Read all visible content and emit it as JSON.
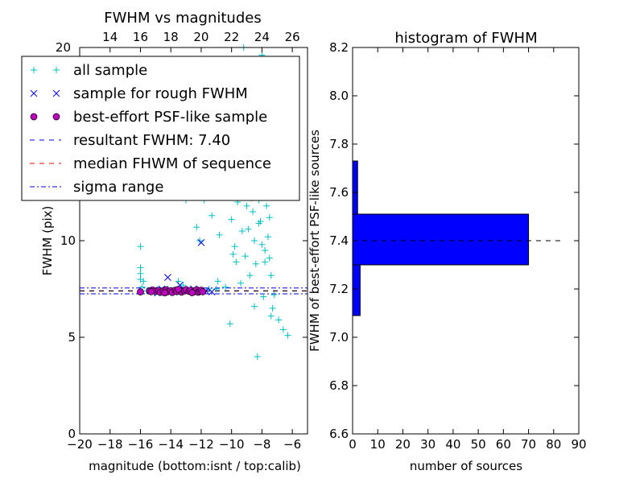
{
  "chart_data": [
    {
      "type": "scatter",
      "title": "FWHM vs magnitudes",
      "xlabel": "magnitude (bottom:isnt / top:calib)",
      "ylabel": "FWHM (pix)",
      "xlim": [
        -20,
        -5
      ],
      "ylim": [
        0,
        20
      ],
      "xticks": [
        "−20",
        "−18",
        "−16",
        "−14",
        "−12",
        "−10",
        "−8",
        "−6"
      ],
      "xtick_values": [
        -20,
        -18,
        -16,
        -14,
        -12,
        -10,
        -8,
        -6
      ],
      "yticks": [
        "0",
        "5",
        "10"
      ],
      "ytick_values": [
        0,
        5,
        10
      ],
      "top_axis_ticks": [
        "14",
        "16",
        "18",
        "20",
        "22",
        "24",
        "26"
      ],
      "top_axis_values": [
        -18,
        -16,
        -14,
        -12,
        -10,
        -8,
        -6
      ],
      "top_axis_corner_label": "20",
      "grid": false,
      "legend_position": "top-left (overlapping into right margin)",
      "legend": [
        {
          "label": "all sample",
          "marker": "+",
          "color": "#00bfbf"
        },
        {
          "label": "sample for rough FWHM",
          "marker": "x",
          "color": "#0000ff"
        },
        {
          "label": "best-effort PSF-like sample",
          "marker": "o",
          "color": "#bf00bf"
        },
        {
          "label": "resultant FWHM: 7.40",
          "linestyle": "dashed",
          "color": "#0000ff"
        },
        {
          "label": "median FHWM of sequence",
          "linestyle": "dashed",
          "color": "#ff0000"
        },
        {
          "label": "sigma range",
          "linestyle": "dashdot",
          "color": "#0000ff"
        }
      ],
      "hlines": [
        {
          "y": 7.4,
          "color": "#0000ff",
          "style": "dashed"
        },
        {
          "y": 7.4,
          "color": "#ff0000",
          "style": "dashed"
        },
        {
          "y": 7.55,
          "color": "#0000ff",
          "style": "dashdot"
        },
        {
          "y": 7.25,
          "color": "#0000ff",
          "style": "dashdot"
        },
        {
          "y": 7.4,
          "color": "#000000",
          "style": "dashed"
        }
      ],
      "series": [
        {
          "name": "all sample",
          "marker": "+",
          "color": "#00bfbf",
          "points": [
            [
              -16.0,
              9.7
            ],
            [
              -16.0,
              8.6
            ],
            [
              -16.0,
              8.3
            ],
            [
              -16.0,
              8.0
            ],
            [
              -15.8,
              7.9
            ],
            [
              -15.9,
              7.6
            ],
            [
              -15.1,
              13.8
            ],
            [
              -14.6,
              16.2
            ],
            [
              -14.3,
              12.6
            ],
            [
              -13.5,
              7.9
            ],
            [
              -13.2,
              7.7
            ],
            [
              -13.0,
              12.1
            ],
            [
              -12.3,
              10.7
            ],
            [
              -12.1,
              10.0
            ],
            [
              -11.8,
              12.1
            ],
            [
              -11.3,
              11.3
            ],
            [
              -10.8,
              10.3
            ],
            [
              -10.6,
              13.2
            ],
            [
              -10.2,
              12.7
            ],
            [
              -10.0,
              11.1
            ],
            [
              -10.1,
              5.7
            ],
            [
              -9.8,
              9.7
            ],
            [
              -9.6,
              12.0
            ],
            [
              -9.5,
              14.0
            ],
            [
              -9.3,
              10.5
            ],
            [
              -9.1,
              9.2
            ],
            [
              -8.9,
              13.0
            ],
            [
              -8.8,
              15.5
            ],
            [
              -8.6,
              11.5
            ],
            [
              -8.5,
              10.0
            ],
            [
              -8.4,
              14.3
            ],
            [
              -8.3,
              13.0
            ],
            [
              -8.2,
              12.1
            ],
            [
              -8.1,
              11.0
            ],
            [
              -8.0,
              9.8
            ],
            [
              -7.9,
              12.5
            ],
            [
              -7.8,
              8.9
            ],
            [
              -7.7,
              11.8
            ],
            [
              -7.6,
              10.2
            ],
            [
              -7.5,
              9.1
            ],
            [
              -7.4,
              8.2
            ],
            [
              -7.3,
              6.5
            ],
            [
              -7.2,
              7.2
            ],
            [
              -6.9,
              5.9
            ],
            [
              -6.6,
              5.4
            ],
            [
              -6.3,
              5.1
            ],
            [
              -8.3,
              4.0
            ],
            [
              -9.2,
              20.0
            ],
            [
              -8.0,
              19.6
            ],
            [
              -7.2,
              18.6
            ],
            [
              -8.6,
              17.5
            ],
            [
              -9.6,
              16.3
            ],
            [
              -8.1,
              16.9
            ],
            [
              -7.6,
              15.2
            ],
            [
              -8.8,
              8.2
            ],
            [
              -7.9,
              7.1
            ],
            [
              -8.5,
              6.6
            ],
            [
              -7.4,
              6.1
            ],
            [
              -9.4,
              7.8
            ],
            [
              -10.4,
              7.6
            ],
            [
              -11.0,
              7.5
            ],
            [
              -11.5,
              7.5
            ],
            [
              -12.0,
              7.4
            ],
            [
              -12.6,
              7.3
            ],
            [
              -13.4,
              7.4
            ],
            [
              -14.2,
              7.5
            ],
            [
              -15.0,
              7.3
            ],
            [
              -15.6,
              7.4
            ],
            [
              -9.0,
              11.8
            ],
            [
              -8.2,
              10.9
            ],
            [
              -7.7,
              13.6
            ],
            [
              -8.4,
              8.8
            ],
            [
              -9.7,
              8.9
            ],
            [
              -10.9,
              7.9
            ],
            [
              -8.7,
              12.2
            ],
            [
              -7.8,
              9.5
            ],
            [
              -8.0,
              14.8
            ],
            [
              -8.9,
              10.6
            ],
            [
              -7.5,
              11.2
            ],
            [
              -9.9,
              9.3
            ]
          ]
        },
        {
          "name": "sample for rough FWHM",
          "marker": "x",
          "color": "#0000ff",
          "points": [
            [
              -14.2,
              8.1
            ],
            [
              -12.0,
              9.9
            ],
            [
              -13.4,
              7.7
            ],
            [
              -15.1,
              7.45
            ],
            [
              -14.6,
              7.5
            ],
            [
              -13.8,
              7.35
            ],
            [
              -13.1,
              7.45
            ],
            [
              -12.5,
              7.5
            ],
            [
              -12.1,
              7.35
            ],
            [
              -11.7,
              7.4
            ],
            [
              -11.3,
              7.35
            ],
            [
              -14.9,
              7.3
            ]
          ]
        },
        {
          "name": "best-effort PSF-like sample",
          "marker": "o",
          "color": "#bf00bf",
          "points": [
            [
              -16.0,
              7.35
            ],
            [
              -15.4,
              7.4
            ],
            [
              -15.2,
              7.45
            ],
            [
              -15.0,
              7.38
            ],
            [
              -14.8,
              7.42
            ],
            [
              -14.7,
              7.33
            ],
            [
              -14.5,
              7.4
            ],
            [
              -14.3,
              7.46
            ],
            [
              -14.2,
              7.36
            ],
            [
              -14.0,
              7.41
            ],
            [
              -13.9,
              7.32
            ],
            [
              -13.7,
              7.44
            ],
            [
              -13.6,
              7.37
            ],
            [
              -13.4,
              7.42
            ],
            [
              -13.3,
              7.34
            ],
            [
              -13.1,
              7.4
            ],
            [
              -13.0,
              7.47
            ],
            [
              -12.8,
              7.38
            ],
            [
              -12.7,
              7.43
            ],
            [
              -12.5,
              7.35
            ],
            [
              -12.4,
              7.41
            ],
            [
              -12.3,
              7.46
            ],
            [
              -12.2,
              7.33
            ],
            [
              -12.1,
              7.39
            ],
            [
              -12.0,
              7.44
            ],
            [
              -11.9,
              7.36
            ],
            [
              -12.6,
              7.31
            ],
            [
              -13.5,
              7.48
            ],
            [
              -14.4,
              7.3
            ],
            [
              -15.3,
              7.36
            ]
          ]
        }
      ]
    },
    {
      "type": "bar",
      "orientation": "horizontal",
      "title": "histogram of FWHM",
      "xlabel": "number of sources",
      "ylabel": "FWHM of best-effort PSF-like sources",
      "xlim": [
        0,
        90
      ],
      "ylim": [
        6.6,
        8.2
      ],
      "xticks": [
        "0",
        "10",
        "20",
        "30",
        "40",
        "50",
        "60",
        "70",
        "80",
        "90"
      ],
      "xtick_values": [
        0,
        10,
        20,
        30,
        40,
        50,
        60,
        70,
        80,
        90
      ],
      "yticks": [
        "6.6",
        "6.8",
        "7.0",
        "7.2",
        "7.4",
        "7.6",
        "7.8",
        "8.0",
        "8.2"
      ],
      "ytick_values": [
        6.6,
        6.8,
        7.0,
        7.2,
        7.4,
        7.6,
        7.8,
        8.0,
        8.2
      ],
      "grid": false,
      "bar_color": "#0000ff",
      "bins": [
        {
          "low": 7.09,
          "high": 7.3,
          "count": 3
        },
        {
          "low": 7.3,
          "high": 7.51,
          "count": 70
        },
        {
          "low": 7.51,
          "high": 7.73,
          "count": 2
        }
      ],
      "hline": {
        "y": 7.4,
        "xmax": 83,
        "color": "#000000",
        "style": "dashed"
      }
    }
  ]
}
